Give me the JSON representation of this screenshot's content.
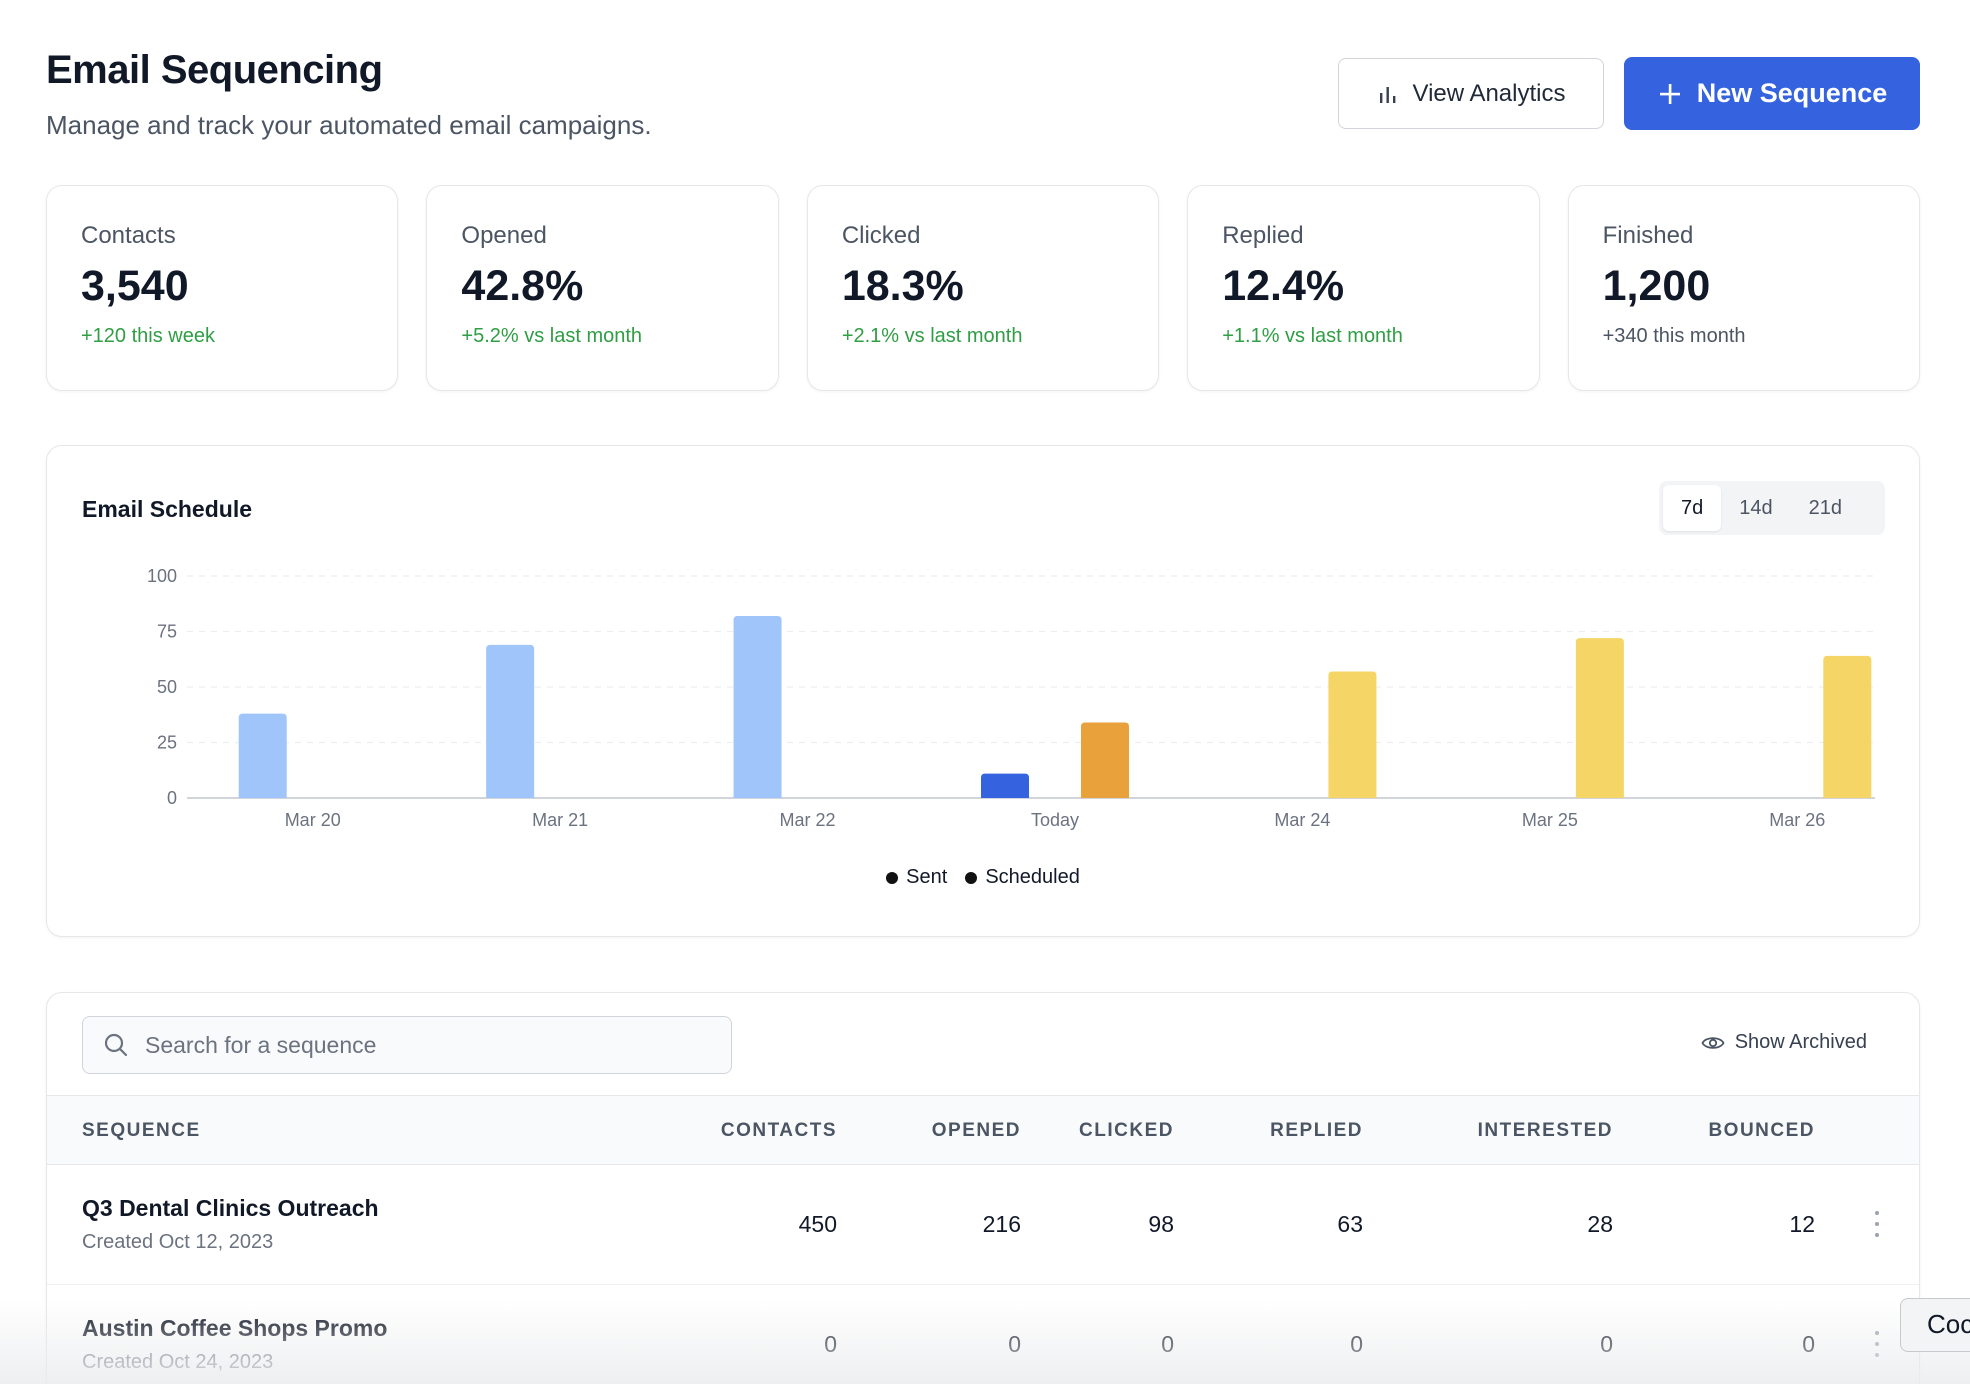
{
  "header": {
    "title": "Email Sequencing",
    "subtitle": "Manage and track your automated email campaigns.",
    "view_analytics_label": "View Analytics",
    "new_sequence_label": "New Sequence"
  },
  "stats": [
    {
      "label": "Contacts",
      "value": "3,540",
      "change": "+120 this week",
      "tone": "positive"
    },
    {
      "label": "Opened",
      "value": "42.8%",
      "change": "+5.2% vs last month",
      "tone": "positive"
    },
    {
      "label": "Clicked",
      "value": "18.3%",
      "change": "+2.1% vs last month",
      "tone": "positive"
    },
    {
      "label": "Replied",
      "value": "12.4%",
      "change": "+1.1% vs last month",
      "tone": "positive"
    },
    {
      "label": "Finished",
      "value": "1,200",
      "change": "+340 this month",
      "tone": "neutral"
    }
  ],
  "schedule": {
    "title": "Email Schedule",
    "ranges": [
      "7d",
      "14d",
      "21d"
    ],
    "active_range": "7d"
  },
  "chart_data": {
    "type": "bar",
    "categories": [
      "Mar 20",
      "Mar 21",
      "Mar 22",
      "Today",
      "Mar 24",
      "Mar 25",
      "Mar 26"
    ],
    "series": [
      {
        "name": "Sent",
        "values": [
          38,
          69,
          82,
          11,
          null,
          null,
          null
        ]
      },
      {
        "name": "Scheduled",
        "values": [
          null,
          null,
          null,
          34,
          57,
          72,
          64
        ]
      }
    ],
    "ylim": [
      0,
      100
    ],
    "yticks": [
      0,
      25,
      50,
      75,
      100
    ],
    "grid": true,
    "legend_position": "bottom-center",
    "colors": {
      "sent_past": "#9fc5fa",
      "sent_today": "#3563e0",
      "scheduled_today": "#e9a23b",
      "scheduled_future": "#f5d565",
      "legend_dot": "#111111"
    }
  },
  "table": {
    "search_placeholder": "Search for a sequence",
    "show_archived_label": "Show Archived",
    "columns": [
      "SEQUENCE",
      "CONTACTS",
      "OPENED",
      "CLICKED",
      "REPLIED",
      "INTERESTED",
      "BOUNCED"
    ],
    "rows": [
      {
        "name": "Q3 Dental Clinics Outreach",
        "created": "Created Oct 12, 2023",
        "contacts": "450",
        "opened": "216",
        "clicked": "98",
        "replied": "63",
        "interested": "28",
        "bounced": "12"
      },
      {
        "name": "Austin Coffee Shops Promo",
        "created": "Created Oct 24, 2023",
        "contacts": "0",
        "opened": "0",
        "clicked": "0",
        "replied": "0",
        "interested": "0",
        "bounced": "0"
      }
    ]
  },
  "tooltip": {
    "text": "Coc"
  }
}
